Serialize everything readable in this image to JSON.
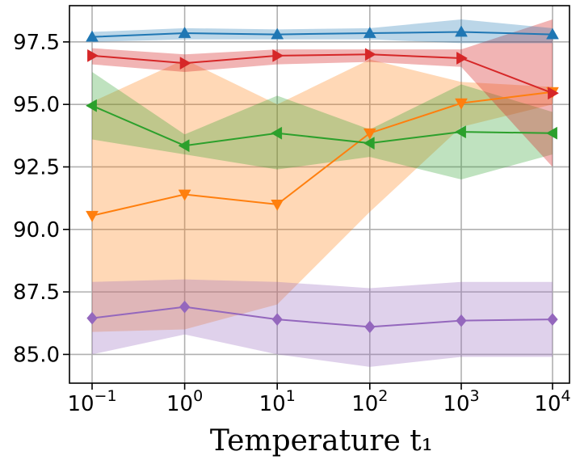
{
  "chart_data": {
    "type": "line",
    "title": "",
    "xlabel": "Temperature t₁",
    "ylabel": "",
    "x": [
      0.1,
      1,
      10,
      100,
      1000,
      10000
    ],
    "x_ticks": [
      {
        "base": "10",
        "exp": "−1"
      },
      {
        "base": "10",
        "exp": "0"
      },
      {
        "base": "10",
        "exp": "1"
      },
      {
        "base": "10",
        "exp": "2"
      },
      {
        "base": "10",
        "exp": "3"
      },
      {
        "base": "10",
        "exp": "4"
      }
    ],
    "y_ticks": [
      85.0,
      87.5,
      90.0,
      92.5,
      95.0,
      97.5
    ],
    "y_tick_labels": [
      "85.0",
      "87.5",
      "90.0",
      "92.5",
      "95.0",
      "97.5"
    ],
    "ylim": [
      83.85,
      98.95
    ],
    "grid": true,
    "series": [
      {
        "name": "orange",
        "color": "#ff7f0e",
        "marker": "triangle-down",
        "values": [
          90.55,
          91.4,
          91.0,
          93.85,
          95.05,
          95.5
        ],
        "lower": [
          85.9,
          86.0,
          87.0,
          90.7,
          94.1,
          95.0
        ],
        "upper": [
          95.1,
          96.8,
          95.0,
          96.8,
          95.9,
          95.7
        ]
      },
      {
        "name": "green",
        "color": "#2ca02c",
        "marker": "triangle-left",
        "values": [
          94.95,
          93.35,
          93.85,
          93.45,
          93.9,
          93.85
        ],
        "lower": [
          93.6,
          93.0,
          92.4,
          92.9,
          92.0,
          93.0
        ],
        "upper": [
          96.3,
          93.8,
          95.35,
          94.0,
          95.8,
          94.7
        ]
      },
      {
        "name": "purple",
        "color": "#9467bd",
        "marker": "diamond",
        "values": [
          86.45,
          86.9,
          86.4,
          86.1,
          86.35,
          86.4
        ],
        "lower": [
          85.0,
          85.8,
          85.0,
          84.5,
          84.9,
          84.9
        ],
        "upper": [
          87.9,
          88.0,
          87.9,
          87.65,
          87.9,
          87.9
        ]
      },
      {
        "name": "red",
        "color": "#d62728",
        "marker": "triangle-right",
        "values": [
          96.95,
          96.65,
          96.95,
          97.0,
          96.85,
          95.45
        ],
        "lower": [
          96.6,
          96.3,
          96.6,
          96.7,
          96.5,
          92.5
        ],
        "upper": [
          97.25,
          97.0,
          97.2,
          97.2,
          97.2,
          98.4
        ],
        "band_opacity": 0.35
      },
      {
        "name": "blue",
        "color": "#1f77b4",
        "marker": "triangle-up",
        "values": [
          97.7,
          97.85,
          97.8,
          97.85,
          97.9,
          97.8
        ],
        "lower": [
          97.5,
          97.6,
          97.6,
          97.6,
          97.45,
          97.45
        ],
        "upper": [
          97.9,
          98.05,
          98.0,
          98.05,
          98.4,
          98.05
        ]
      }
    ]
  }
}
